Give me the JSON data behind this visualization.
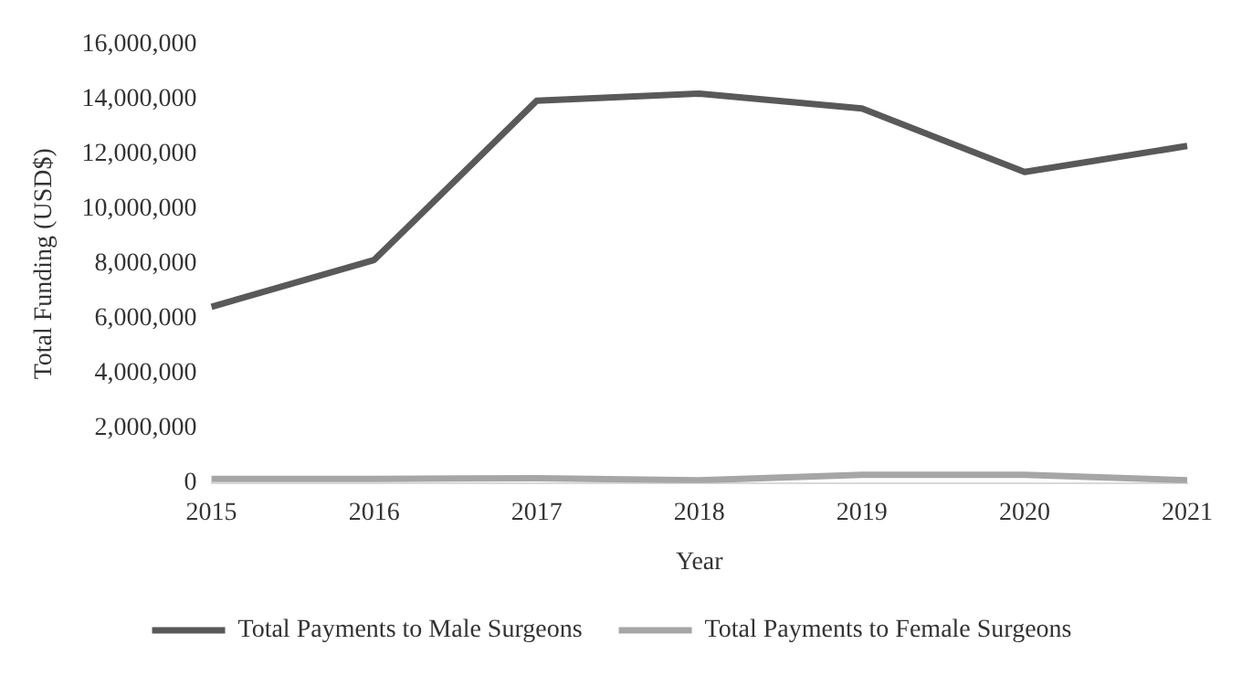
{
  "chart_data": {
    "type": "line",
    "xlabel": "Year",
    "ylabel": "Total Funding (USD$)",
    "categories": [
      "2015",
      "2016",
      "2017",
      "2018",
      "2019",
      "2020",
      "2021"
    ],
    "series": [
      {
        "name": "Total Payments to Male Surgeons",
        "color": "#595959",
        "values": [
          6430000,
          8140000,
          13950000,
          14210000,
          13670000,
          11350000,
          12300000
        ]
      },
      {
        "name": "Total Payments to Female Surgeons",
        "color": "#a6a6a6",
        "values": [
          150000,
          150000,
          180000,
          100000,
          300000,
          300000,
          100000
        ]
      }
    ],
    "ylim": [
      0,
      16000000
    ],
    "yticks": [
      {
        "value": 0,
        "label": "0"
      },
      {
        "value": 2000000,
        "label": "2,000,000"
      },
      {
        "value": 4000000,
        "label": "4,000,000"
      },
      {
        "value": 6000000,
        "label": "6,000,000"
      },
      {
        "value": 8000000,
        "label": "8,000,000"
      },
      {
        "value": 10000000,
        "label": "10,000,000"
      },
      {
        "value": 12000000,
        "label": "12,000,000"
      },
      {
        "value": 14000000,
        "label": "14,000,000"
      },
      {
        "value": 16000000,
        "label": "16,000,000"
      }
    ],
    "grid": false,
    "legend": "bottom",
    "marker": "none",
    "line_style": "solid"
  }
}
